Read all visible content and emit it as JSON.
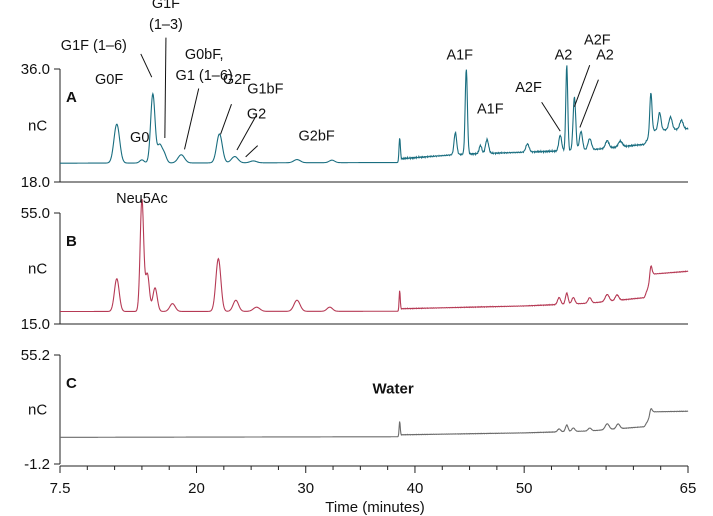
{
  "chart_data": {
    "type": "line",
    "xlabel": "Time (minutes)",
    "xlim": [
      7.5,
      65
    ],
    "xticks": [
      7.5,
      20,
      30,
      40,
      50,
      65
    ],
    "xtick_labels": [
      "7.5",
      "20",
      "30",
      "40",
      "50",
      "65"
    ],
    "panels": [
      {
        "letter": "A",
        "ylabel": "nC",
        "ylim": [
          18.0,
          36.0
        ],
        "yticks": [
          "36.0",
          "18.0"
        ],
        "color": "#1a6e80",
        "baseline": 21.0,
        "drift": [
          [
            7.5,
            0
          ],
          [
            38.6,
            0.1
          ],
          [
            38.7,
            0.7
          ],
          [
            44,
            1.4
          ],
          [
            56,
            2.1
          ],
          [
            61,
            3.0
          ],
          [
            61.8,
            5.2
          ],
          [
            65,
            5.5
          ]
        ],
        "peaks": [
          {
            "x": 12.7,
            "height": 6.2,
            "width": 0.26
          },
          {
            "x": 15.0,
            "height": 0.5,
            "width": 0.2
          },
          {
            "x": 16.0,
            "height": 11.0,
            "width": 0.2
          },
          {
            "x": 16.6,
            "height": 2.6,
            "width": 0.2
          },
          {
            "x": 17.0,
            "height": 1.6,
            "width": 0.22
          },
          {
            "x": 18.6,
            "height": 1.3,
            "width": 0.3
          },
          {
            "x": 22.1,
            "height": 4.6,
            "width": 0.26
          },
          {
            "x": 23.5,
            "height": 1.0,
            "width": 0.3
          },
          {
            "x": 25.2,
            "height": 0.3,
            "width": 0.3
          },
          {
            "x": 29.2,
            "height": 0.5,
            "width": 0.3
          },
          {
            "x": 32.4,
            "height": 0.4,
            "width": 0.25
          },
          {
            "x": 38.6,
            "height": 3.9,
            "width": 0.06
          },
          {
            "x": 43.7,
            "height": 3.5,
            "width": 0.12
          },
          {
            "x": 44.7,
            "height": 13.6,
            "width": 0.1
          },
          {
            "x": 46.0,
            "height": 1.3,
            "width": 0.12
          },
          {
            "x": 46.6,
            "height": 2.2,
            "width": 0.14
          },
          {
            "x": 50.3,
            "height": 1.3,
            "width": 0.15
          },
          {
            "x": 53.3,
            "height": 2.5,
            "width": 0.13
          },
          {
            "x": 53.9,
            "height": 13.6,
            "width": 0.09
          },
          {
            "x": 54.6,
            "height": 8.5,
            "width": 0.12
          },
          {
            "x": 55.2,
            "height": 3.0,
            "width": 0.14
          },
          {
            "x": 56.0,
            "height": 1.8,
            "width": 0.16
          },
          {
            "x": 57.6,
            "height": 1.2,
            "width": 0.16
          },
          {
            "x": 58.8,
            "height": 0.9,
            "width": 0.18
          },
          {
            "x": 61.6,
            "height": 6.6,
            "width": 0.1
          },
          {
            "x": 62.4,
            "height": 2.8,
            "width": 0.13
          },
          {
            "x": 63.4,
            "height": 2.0,
            "width": 0.15
          },
          {
            "x": 64.4,
            "height": 1.4,
            "width": 0.15
          }
        ],
        "labels": [
          {
            "lines": [
              "G0F"
            ],
            "x": 12.0,
            "y": 33.6
          },
          {
            "lines": [
              "G0"
            ],
            "x": 14.8,
            "y": 24.4
          },
          {
            "lines": [
              "G1F (1–6)"
            ],
            "x": 10.6,
            "y": 39.0
          },
          {
            "lines": [
              "G1F",
              "(1–3)"
            ],
            "x": 17.2,
            "y": 45.7
          },
          {
            "lines": [
              "G0bF,",
              "G1 (1–6)"
            ],
            "x": 20.7,
            "y": 37.6
          },
          {
            "lines": [
              "G2F"
            ],
            "x": 23.7,
            "y": 33.6
          },
          {
            "lines": [
              "G1bF"
            ],
            "x": 26.3,
            "y": 32.1
          },
          {
            "lines": [
              "G2"
            ],
            "x": 25.5,
            "y": 28.1
          },
          {
            "lines": [
              "G2bF"
            ],
            "x": 31.0,
            "y": 24.6
          },
          {
            "lines": [
              "A1F"
            ],
            "x": 44.1,
            "y": 37.5
          },
          {
            "lines": [
              "A1F"
            ],
            "x": 46.9,
            "y": 28.9
          },
          {
            "lines": [
              "A2F"
            ],
            "x": 50.4,
            "y": 32.3
          },
          {
            "lines": [
              "A2"
            ],
            "x": 53.6,
            "y": 37.5
          },
          {
            "lines": [
              "A2F"
            ],
            "x": 56.7,
            "y": 39.9
          },
          {
            "lines": [
              "A2"
            ],
            "x": 57.4,
            "y": 37.5
          }
        ],
        "leaders": [
          [
            [
              14.9,
              38.4
            ],
            [
              15.9,
              34.7
            ]
          ],
          [
            [
              17.2,
              41.0
            ],
            [
              17.1,
              25.0
            ]
          ],
          [
            [
              20.2,
              32.9
            ],
            [
              18.9,
              23.2
            ]
          ],
          [
            [
              23.2,
              30.4
            ],
            [
              22.2,
              25.6
            ]
          ],
          [
            [
              25.5,
              28.7
            ],
            [
              23.7,
              23.1
            ]
          ],
          [
            [
              25.6,
              23.8
            ],
            [
              24.5,
              22.0
            ]
          ],
          [
            [
              51.6,
              30.7
            ],
            [
              53.3,
              26.1
            ]
          ],
          [
            [
              56.0,
              36.6
            ],
            [
              54.6,
              30.0
            ]
          ],
          [
            [
              56.8,
              34.3
            ],
            [
              55.1,
              26.7
            ]
          ]
        ]
      },
      {
        "letter": "B",
        "ylabel": "nC",
        "ylim": [
          15.0,
          55.0
        ],
        "yticks": [
          "55.0",
          "15.0"
        ],
        "color": "#b63a55",
        "baseline": 19.5,
        "drift": [
          [
            7.5,
            0
          ],
          [
            38.6,
            0.1
          ],
          [
            38.7,
            1.0
          ],
          [
            50,
            2.0
          ],
          [
            56,
            3.0
          ],
          [
            61,
            5.0
          ],
          [
            61.8,
            13.5
          ],
          [
            65,
            14.5
          ]
        ],
        "peaks": [
          {
            "x": 12.7,
            "height": 11.8,
            "width": 0.22
          },
          {
            "x": 15.0,
            "height": 40.3,
            "width": 0.16
          },
          {
            "x": 15.5,
            "height": 13.5,
            "width": 0.18
          },
          {
            "x": 16.2,
            "height": 8.5,
            "width": 0.2
          },
          {
            "x": 17.8,
            "height": 2.8,
            "width": 0.25
          },
          {
            "x": 22.0,
            "height": 19.0,
            "width": 0.23
          },
          {
            "x": 23.6,
            "height": 4.0,
            "width": 0.25
          },
          {
            "x": 25.5,
            "height": 1.5,
            "width": 0.3
          },
          {
            "x": 29.2,
            "height": 4.0,
            "width": 0.28
          },
          {
            "x": 32.2,
            "height": 1.5,
            "width": 0.25
          },
          {
            "x": 38.6,
            "height": 7.5,
            "width": 0.05
          },
          {
            "x": 53.2,
            "height": 2.5,
            "width": 0.14
          },
          {
            "x": 53.9,
            "height": 4.0,
            "width": 0.12
          },
          {
            "x": 54.5,
            "height": 2.3,
            "width": 0.14
          },
          {
            "x": 56.0,
            "height": 2.0,
            "width": 0.15
          },
          {
            "x": 57.6,
            "height": 2.5,
            "width": 0.18
          },
          {
            "x": 58.5,
            "height": 2.0,
            "width": 0.16
          },
          {
            "x": 61.6,
            "height": 5.0,
            "width": 0.1
          }
        ],
        "labels": [
          {
            "lines": [
              "Neu5Ac"
            ],
            "x": 15.0,
            "y": 58.6
          }
        ],
        "leaders": []
      },
      {
        "letter": "C",
        "ylabel": "nC",
        "ylim": [
          -1.2,
          55.2
        ],
        "yticks": [
          "55.2",
          "-1.2"
        ],
        "color": "#6b6b6b",
        "baseline": 12.6,
        "drift": [
          [
            7.5,
            0
          ],
          [
            38.6,
            0.3
          ],
          [
            38.7,
            1.3
          ],
          [
            50,
            2.3
          ],
          [
            56,
            3.3
          ],
          [
            61,
            5.5
          ],
          [
            61.8,
            13.2
          ],
          [
            65,
            13.5
          ]
        ],
        "peaks": [
          {
            "x": 38.6,
            "height": 8.0,
            "width": 0.05
          },
          {
            "x": 53.2,
            "height": 1.5,
            "width": 0.14
          },
          {
            "x": 53.9,
            "height": 3.4,
            "width": 0.12
          },
          {
            "x": 54.5,
            "height": 1.8,
            "width": 0.14
          },
          {
            "x": 56.0,
            "height": 1.5,
            "width": 0.15
          },
          {
            "x": 57.6,
            "height": 3.0,
            "width": 0.18
          },
          {
            "x": 58.6,
            "height": 2.5,
            "width": 0.16
          },
          {
            "x": 61.6,
            "height": 3.5,
            "width": 0.1
          }
        ],
        "labels": [],
        "leaders": [],
        "note": {
          "text": "Water",
          "x": 38.0,
          "y": 35.3
        }
      }
    ]
  }
}
